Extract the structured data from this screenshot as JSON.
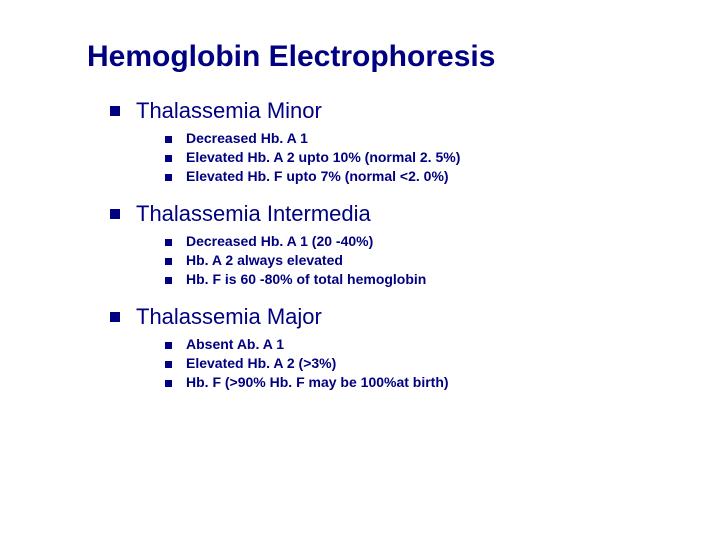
{
  "title": "Hemoglobin Electrophoresis",
  "sections": [
    {
      "heading": "Thalassemia Minor",
      "items": [
        "Decreased Hb. A 1",
        "Elevated Hb. A 2 upto 10% (normal 2. 5%)",
        "Elevated Hb. F upto 7% (normal <2. 0%)"
      ]
    },
    {
      "heading": "Thalassemia Intermedia",
      "items": [
        "Decreased Hb. A 1 (20 -40%)",
        "Hb. A 2 always elevated",
        "Hb. F is 60 -80% of total hemoglobin"
      ]
    },
    {
      "heading": "Thalassemia Major",
      "items": [
        "Absent Ab. A 1",
        "Elevated Hb. A 2 (>3%)",
        "Hb. F (>90% Hb. F may be 100%at birth)"
      ]
    }
  ],
  "colors": {
    "text": "#000080",
    "bullet": "#000080",
    "background": "#ffffff"
  }
}
